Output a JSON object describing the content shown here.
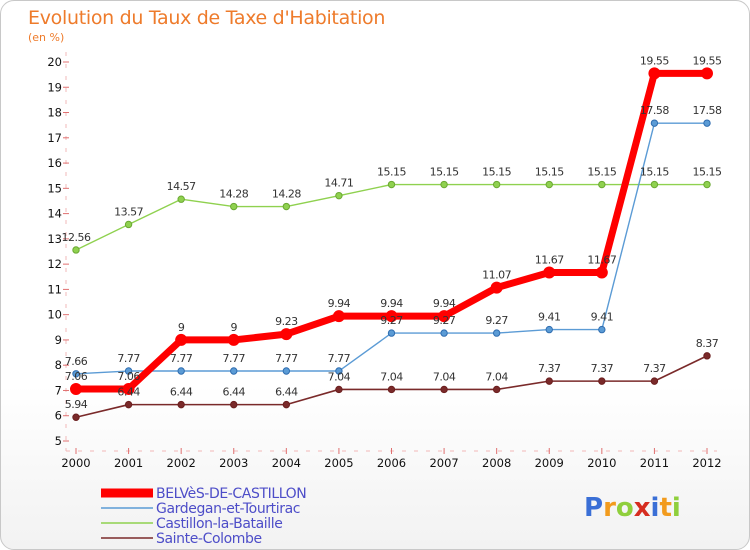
{
  "chart_data": {
    "type": "line",
    "title": "Evolution du Taux de Taxe d'Habitation",
    "ylabel": "(en %)",
    "x": [
      "2000",
      "2001",
      "2002",
      "2003",
      "2004",
      "2005",
      "2006",
      "2007",
      "2008",
      "2009",
      "2010",
      "2011",
      "2012"
    ],
    "ylim": [
      5,
      20
    ],
    "grid": false,
    "legend_position": "bottom-left",
    "series": [
      {
        "name": "BELVèS-DE-CASTILLON",
        "color": "#ff0000",
        "values": [
          7.06,
          7.06,
          9,
          9,
          9.23,
          9.94,
          9.94,
          9.94,
          11.07,
          11.67,
          11.67,
          19.55,
          19.55
        ]
      },
      {
        "name": "Gardegan-et-Tourtirac",
        "color": "#5b9bd5",
        "values": [
          7.66,
          7.77,
          7.77,
          7.77,
          7.77,
          7.77,
          9.27,
          9.27,
          9.27,
          9.41,
          9.41,
          17.58,
          17.58
        ]
      },
      {
        "name": "Castillon-la-Bataille",
        "color": "#8fd14f",
        "values": [
          12.56,
          13.57,
          14.57,
          14.28,
          14.28,
          14.71,
          15.15,
          15.15,
          15.15,
          15.15,
          15.15,
          15.15,
          15.15
        ]
      },
      {
        "name": "Sainte-Colombe",
        "color": "#7a2a2a",
        "values": [
          5.94,
          6.44,
          6.44,
          6.44,
          6.44,
          7.04,
          7.04,
          7.04,
          7.04,
          7.37,
          7.37,
          7.37,
          8.37
        ]
      }
    ]
  },
  "labels": {
    "belves": [
      "7.06",
      "7.06",
      "9",
      "9",
      "9.23",
      "9.94",
      "9.94",
      "9.94",
      "11.07",
      "11.67",
      "11.67",
      "19.55",
      "19.55"
    ],
    "gardegan": [
      "7.66",
      "7.77",
      "7.77",
      "7.77",
      "7.77",
      "7.77",
      "9.27",
      "9.27",
      "9.27",
      "9.41",
      "9.41",
      "17.58",
      "17.58"
    ],
    "castillon": [
      "12.56",
      "13.57",
      "14.57",
      "14.28",
      "14.28",
      "14.71",
      "15.15",
      "15.15",
      "15.15",
      "15.15",
      "15.15",
      "15.15",
      "15.15"
    ],
    "colombe": [
      "5.94",
      "6.44",
      "6.44",
      "6.44",
      "6.44",
      "7.04",
      "7.04",
      "7.04",
      "7.04",
      "7.37",
      "7.37",
      "7.37",
      "8.37"
    ]
  },
  "logo": {
    "letters": [
      "P",
      "r",
      "o",
      "x",
      "i",
      "t",
      "i"
    ],
    "colors": [
      "#3a6fd6",
      "#f29b1d",
      "#8fcf3c",
      "#d62d20",
      "#3a6fd6",
      "#f29b1d",
      "#8fcf3c"
    ]
  }
}
